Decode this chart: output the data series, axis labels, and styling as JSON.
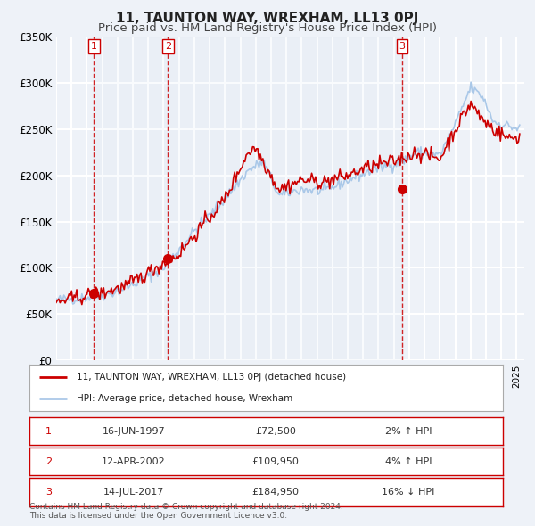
{
  "title": "11, TAUNTON WAY, WREXHAM, LL13 0PJ",
  "subtitle": "Price paid vs. HM Land Registry's House Price Index (HPI)",
  "background_color": "#eef2f8",
  "plot_bg_color": "#eef2f8",
  "grid_color": "#ffffff",
  "hpi_color": "#aac8e8",
  "price_color": "#cc0000",
  "ylim": [
    0,
    350000
  ],
  "yticks": [
    0,
    50000,
    100000,
    150000,
    200000,
    250000,
    300000,
    350000
  ],
  "ytick_labels": [
    "£0",
    "£50K",
    "£100K",
    "£150K",
    "£200K",
    "£250K",
    "£300K",
    "£350K"
  ],
  "xstart": 1995.0,
  "xend": 2025.5,
  "sales": [
    {
      "label": "1",
      "date": 1997.46,
      "price": 72500,
      "text": "16-JUN-1997",
      "amount": "£72,500",
      "hpi_rel": "2% ↑ HPI"
    },
    {
      "label": "2",
      "date": 2002.28,
      "price": 109950,
      "text": "12-APR-2002",
      "amount": "£109,950",
      "hpi_rel": "4% ↑ HPI"
    },
    {
      "label": "3",
      "date": 2017.53,
      "price": 184950,
      "text": "14-JUL-2017",
      "amount": "£184,950",
      "hpi_rel": "16% ↓ HPI"
    }
  ],
  "legend_entry1": "11, TAUNTON WAY, WREXHAM, LL13 0PJ (detached house)",
  "legend_entry2": "HPI: Average price, detached house, Wrexham",
  "footer": "Contains HM Land Registry data © Crown copyright and database right 2024.\nThis data is licensed under the Open Government Licence v3.0.",
  "title_fontsize": 11,
  "subtitle_fontsize": 9.5
}
